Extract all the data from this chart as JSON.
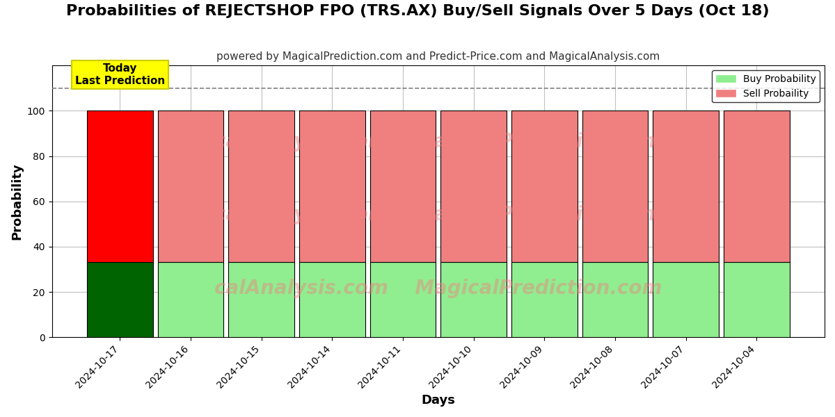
{
  "title": "Probabilities of REJECTSHOP FPO (TRS.AX) Buy/Sell Signals Over 5 Days (Oct 18)",
  "subtitle": "powered by MagicalPrediction.com and Predict-Price.com and MagicalAnalysis.com",
  "xlabel": "Days",
  "ylabel": "Probability",
  "categories": [
    "2024-10-17",
    "2024-10-16",
    "2024-10-15",
    "2024-10-14",
    "2024-10-11",
    "2024-10-10",
    "2024-10-09",
    "2024-10-08",
    "2024-10-07",
    "2024-10-04"
  ],
  "buy_values": [
    33.33,
    33.33,
    33.33,
    33.33,
    33.33,
    33.33,
    33.33,
    33.33,
    33.33,
    33.33
  ],
  "sell_values": [
    66.67,
    66.67,
    66.67,
    66.67,
    66.67,
    66.67,
    66.67,
    66.67,
    66.67,
    66.67
  ],
  "buy_colors_today": "#006400",
  "sell_colors_today": "#ff0000",
  "buy_colors_other": "#90ee90",
  "sell_colors_other": "#f08080",
  "bar_edge_color": "#000000",
  "bar_edge_width": 0.8,
  "today_annotation": "Today\nLast Prediction",
  "annotation_bg_color": "#ffff00",
  "dashed_line_y": 110,
  "dashed_line_color": "#808080",
  "ylim": [
    0,
    120
  ],
  "yticks": [
    0,
    20,
    40,
    60,
    80,
    100
  ],
  "legend_buy_label": "Buy Probability",
  "legend_sell_label": "Sell Probaility",
  "grid_color": "#c0c0c0",
  "bg_color": "#ffffff",
  "watermark_line1": "MagicalAnalysis.com",
  "watermark_line2": "MagicalPrediction.com",
  "watermark_combined": "calAnalysis.com    MagicalPrediction.com",
  "title_fontsize": 16,
  "subtitle_fontsize": 11,
  "axis_label_fontsize": 13
}
